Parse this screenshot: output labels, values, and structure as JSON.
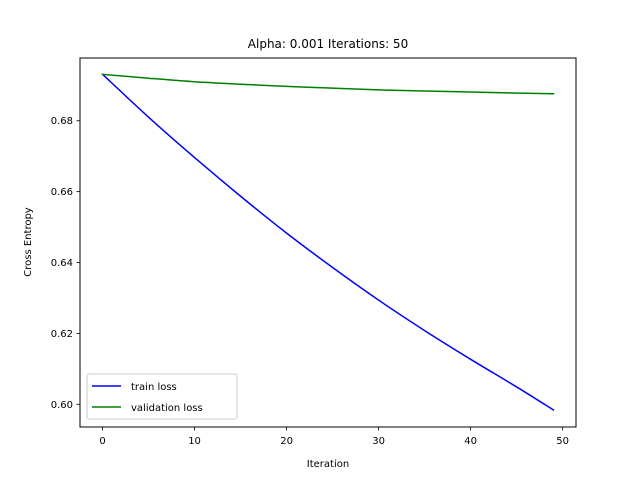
{
  "chart_data": {
    "type": "line",
    "title": "Alpha: 0.001 Iterations: 50",
    "xlabel": "Iteration",
    "ylabel": "Cross Entropy",
    "xlim": [
      -2.45,
      51.45
    ],
    "ylim": [
      0.5936,
      0.6977
    ],
    "xticks": [
      0,
      10,
      20,
      30,
      40,
      50
    ],
    "xtick_labels": [
      "0",
      "10",
      "20",
      "30",
      "40",
      "50"
    ],
    "yticks": [
      0.6,
      0.62,
      0.64,
      0.66,
      0.68
    ],
    "ytick_labels": [
      "0.60",
      "0.62",
      "0.64",
      "0.66",
      "0.68"
    ],
    "grid": false,
    "legend_position": "lower-left",
    "x": [
      0,
      5,
      10,
      15,
      20,
      25,
      30,
      35,
      40,
      45,
      49
    ],
    "series": [
      {
        "name": "train loss",
        "color": "#0000ff",
        "values": [
          0.6931,
          0.681,
          0.6696,
          0.6587,
          0.6483,
          0.6386,
          0.6294,
          0.6208,
          0.6127,
          0.6049,
          0.5984
        ]
      },
      {
        "name": "validation loss",
        "color": "#008000",
        "values": [
          0.6931,
          0.692,
          0.691,
          0.6903,
          0.6897,
          0.6892,
          0.6887,
          0.6884,
          0.6881,
          0.6878,
          0.6876
        ]
      }
    ]
  }
}
